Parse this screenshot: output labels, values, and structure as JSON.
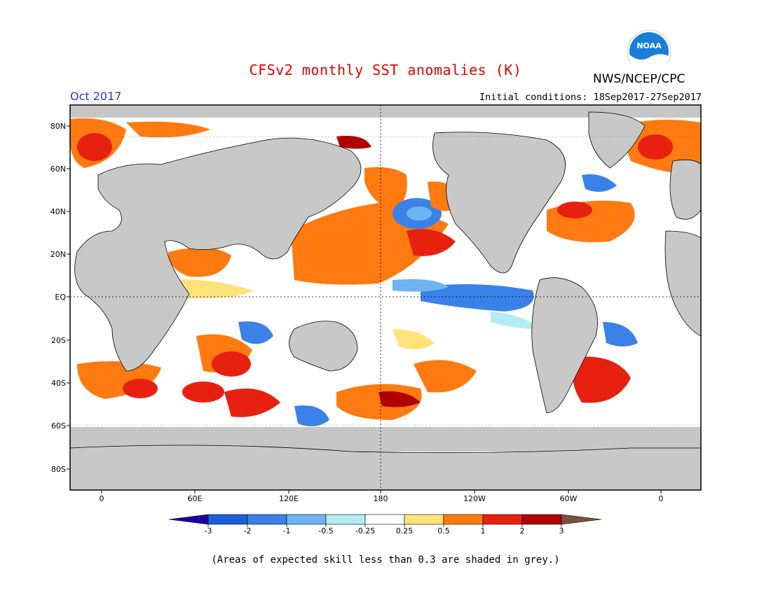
{
  "header": {
    "title": "CFSv2 monthly SST anomalies (K)",
    "agency": "NWS/NCEP/CPC",
    "logo_text": "NOAA",
    "valid_month": "Oct 2017",
    "initial_conditions": "Initial conditions: 18Sep2017-27Sep2017"
  },
  "map": {
    "lat_labels": [
      "80N",
      "60N",
      "40N",
      "20N",
      "EQ",
      "20S",
      "40S",
      "60S",
      "80S"
    ],
    "lon_labels": [
      "0",
      "60E",
      "120E",
      "180",
      "120W",
      "60W",
      "0"
    ],
    "land_color": "#c8c8c8",
    "no_skill_color": "#c0c0c0"
  },
  "colorbar": {
    "tick_labels": [
      "-3",
      "-2",
      "-1",
      "-0.5",
      "-0.25",
      "0.25",
      "0.5",
      "1",
      "2",
      "3"
    ],
    "colors": [
      "#1e00a0",
      "#1a5fd8",
      "#3a82e8",
      "#6fb4f0",
      "#b4ecf4",
      "#ffffff",
      "#ffe27a",
      "#ff7a10",
      "#e82010",
      "#b00000",
      "#b05020",
      "#7a5040"
    ]
  },
  "footnote": "(Areas of expected skill less than 0.3 are shaded in grey.)"
}
